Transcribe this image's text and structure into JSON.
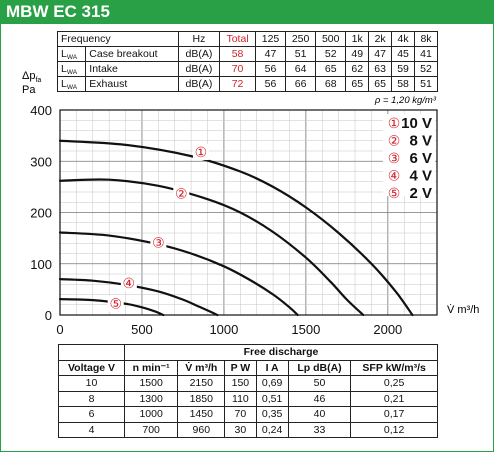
{
  "title": "MBW EC 315",
  "noise_table": {
    "headers": [
      "Frequency",
      "Hz",
      "Total",
      "125",
      "250",
      "500",
      "1k",
      "2k",
      "4k",
      "8k"
    ],
    "rows": [
      {
        "symbol": "L",
        "sub": "WA",
        "label": "Case breakout",
        "unit": "dB(A)",
        "total": "58",
        "values": [
          "47",
          "51",
          "52",
          "49",
          "47",
          "45",
          "41"
        ]
      },
      {
        "symbol": "L",
        "sub": "WA",
        "label": "Intake",
        "unit": "dB(A)",
        "total": "70",
        "values": [
          "56",
          "64",
          "65",
          "62",
          "63",
          "59",
          "52"
        ]
      },
      {
        "symbol": "L",
        "sub": "WA",
        "label": "Exhaust",
        "unit": "dB(A)",
        "total": "72",
        "values": [
          "56",
          "66",
          "68",
          "65",
          "65",
          "58",
          "51"
        ]
      }
    ]
  },
  "chart_data": {
    "type": "line",
    "ylabel_symbol": "Δp",
    "ylabel_sub": "fa",
    "ylabel_unit": "Pa",
    "xlabel": "V̇ m³/h",
    "density_note": "ρ = 1,20 kg/m³",
    "xlim": [
      0,
      2300
    ],
    "ylim": [
      0,
      400
    ],
    "x_ticks": [
      "0",
      "500",
      "1000",
      "1500",
      "2000"
    ],
    "y_ticks": [
      "0",
      "100",
      "200",
      "300",
      "400"
    ],
    "grid": true,
    "legend_position": "top-right",
    "legend": [
      {
        "marker": "①",
        "label": "10 V"
      },
      {
        "marker": "②",
        "label": "8 V"
      },
      {
        "marker": "③",
        "label": "6 V"
      },
      {
        "marker": "④",
        "label": "4 V"
      },
      {
        "marker": "⑤",
        "label": "2 V"
      }
    ],
    "series": [
      {
        "marker": "①",
        "x": [
          0,
          400,
          800,
          1100,
          1300,
          1500,
          1700,
          1900,
          2050,
          2150
        ],
        "y": [
          340,
          332,
          310,
          280,
          250,
          210,
          160,
          100,
          45,
          0
        ],
        "label_x": 860,
        "label_y": 318
      },
      {
        "marker": "②",
        "x": [
          0,
          300,
          600,
          900,
          1100,
          1300,
          1500,
          1650,
          1750,
          1850
        ],
        "y": [
          262,
          264,
          252,
          226,
          200,
          162,
          112,
          65,
          30,
          0
        ],
        "label_x": 740,
        "label_y": 237
      },
      {
        "marker": "③",
        "x": [
          0,
          300,
          600,
          800,
          1000,
          1150,
          1300,
          1400,
          1450
        ],
        "y": [
          161,
          155,
          138,
          120,
          95,
          70,
          40,
          15,
          0
        ],
        "label_x": 600,
        "label_y": 141
      },
      {
        "marker": "④",
        "x": [
          0,
          200,
          400,
          600,
          750,
          850,
          920,
          960
        ],
        "y": [
          70,
          67,
          59,
          46,
          30,
          16,
          6,
          0
        ],
        "label_x": 420,
        "label_y": 62
      },
      {
        "marker": "⑤",
        "x": [
          0,
          200,
          400,
          500,
          580,
          630
        ],
        "y": [
          31,
          29,
          22,
          15,
          7,
          0
        ],
        "label_x": 340,
        "label_y": 22
      }
    ]
  },
  "performance_table": {
    "group_header": "Free discharge",
    "headers": [
      "Voltage V",
      "n min⁻¹",
      "V̇ m³/h",
      "P W",
      "I A",
      "Lp dB(A)",
      "SFP kW/m³/s"
    ],
    "rows": [
      [
        "10",
        "1500",
        "2150",
        "150",
        "0,69",
        "50",
        "0,25"
      ],
      [
        "8",
        "1300",
        "1850",
        "110",
        "0,51",
        "46",
        "0,21"
      ],
      [
        "6",
        "1000",
        "1450",
        "70",
        "0,35",
        "40",
        "0,17"
      ],
      [
        "4",
        "700",
        "960",
        "30",
        "0,24",
        "33",
        "0,12"
      ]
    ]
  },
  "colors": {
    "brand_green": "#2aa046",
    "total_red": "#d2232a",
    "curve": "#111111"
  }
}
